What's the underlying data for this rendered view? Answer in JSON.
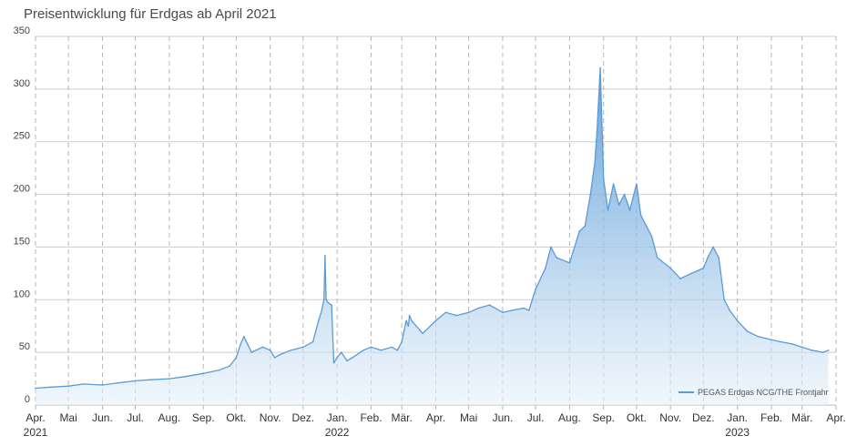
{
  "chart_data": {
    "type": "area",
    "title": "Preisentwicklung für Erdgas ab April 2021",
    "ylim": [
      0,
      350
    ],
    "yticks": [
      0,
      50,
      100,
      150,
      200,
      250,
      300,
      350
    ],
    "xlim": [
      "2021-04-01",
      "2023-04-01"
    ],
    "xticks": [
      {
        "date": "2021-04-01",
        "label": "Apr.",
        "year": "2021"
      },
      {
        "date": "2021-05-01",
        "label": "Mai"
      },
      {
        "date": "2021-06-01",
        "label": "Jun."
      },
      {
        "date": "2021-07-01",
        "label": "Jul."
      },
      {
        "date": "2021-08-01",
        "label": "Aug."
      },
      {
        "date": "2021-09-01",
        "label": "Sep."
      },
      {
        "date": "2021-10-01",
        "label": "Okt."
      },
      {
        "date": "2021-11-01",
        "label": "Nov."
      },
      {
        "date": "2021-12-01",
        "label": "Dez."
      },
      {
        "date": "2022-01-01",
        "label": "Jan.",
        "year": "2022"
      },
      {
        "date": "2022-02-01",
        "label": "Feb."
      },
      {
        "date": "2022-03-01",
        "label": "Mär."
      },
      {
        "date": "2022-04-01",
        "label": "Apr."
      },
      {
        "date": "2022-05-01",
        "label": "Mai"
      },
      {
        "date": "2022-06-01",
        "label": "Jun."
      },
      {
        "date": "2022-07-01",
        "label": "Jul."
      },
      {
        "date": "2022-08-01",
        "label": "Aug."
      },
      {
        "date": "2022-09-01",
        "label": "Sep."
      },
      {
        "date": "2022-10-01",
        "label": "Okt."
      },
      {
        "date": "2022-11-01",
        "label": "Nov."
      },
      {
        "date": "2022-12-01",
        "label": "Dez."
      },
      {
        "date": "2023-01-01",
        "label": "Jan.",
        "year": "2023"
      },
      {
        "date": "2023-02-01",
        "label": "Feb."
      },
      {
        "date": "2023-03-01",
        "label": "Mär."
      },
      {
        "date": "2023-04-01",
        "label": "Apr."
      }
    ],
    "grid": {
      "horizontal": "solid",
      "vertical": "dashed"
    },
    "legend_position": "bottom-right",
    "series": [
      {
        "name": "PEGAS Erdgas NCG/THE Frontjahr",
        "color": "#5b9bd5",
        "x": [
          "2021-04-01",
          "2021-04-15",
          "2021-05-01",
          "2021-05-15",
          "2021-06-01",
          "2021-06-15",
          "2021-07-01",
          "2021-07-15",
          "2021-08-01",
          "2021-08-15",
          "2021-09-01",
          "2021-09-15",
          "2021-09-25",
          "2021-10-01",
          "2021-10-05",
          "2021-10-08",
          "2021-10-15",
          "2021-10-25",
          "2021-11-01",
          "2021-11-05",
          "2021-11-10",
          "2021-11-20",
          "2021-12-01",
          "2021-12-10",
          "2021-12-15",
          "2021-12-18",
          "2021-12-20",
          "2021-12-21",
          "2021-12-22",
          "2021-12-24",
          "2021-12-27",
          "2021-12-29",
          "2022-01-01",
          "2022-01-05",
          "2022-01-10",
          "2022-01-15",
          "2022-01-25",
          "2022-02-01",
          "2022-02-10",
          "2022-02-20",
          "2022-02-25",
          "2022-03-01",
          "2022-03-05",
          "2022-03-07",
          "2022-03-08",
          "2022-03-10",
          "2022-03-20",
          "2022-04-01",
          "2022-04-10",
          "2022-04-20",
          "2022-05-01",
          "2022-05-10",
          "2022-05-20",
          "2022-06-01",
          "2022-06-10",
          "2022-06-20",
          "2022-06-25",
          "2022-07-01",
          "2022-07-10",
          "2022-07-15",
          "2022-07-20",
          "2022-08-01",
          "2022-08-10",
          "2022-08-15",
          "2022-08-20",
          "2022-08-24",
          "2022-08-26",
          "2022-08-29",
          "2022-09-01",
          "2022-09-05",
          "2022-09-10",
          "2022-09-15",
          "2022-09-20",
          "2022-09-25",
          "2022-10-01",
          "2022-10-05",
          "2022-10-10",
          "2022-10-15",
          "2022-10-20",
          "2022-11-01",
          "2022-11-10",
          "2022-11-20",
          "2022-12-01",
          "2022-12-05",
          "2022-12-10",
          "2022-12-15",
          "2022-12-20",
          "2022-12-25",
          "2023-01-01",
          "2023-01-10",
          "2023-01-20",
          "2023-02-01",
          "2023-02-10",
          "2023-02-20",
          "2023-03-01",
          "2023-03-10",
          "2023-03-20",
          "2023-03-25"
        ],
        "values": [
          16,
          17,
          18,
          20,
          19,
          21,
          23,
          24,
          25,
          27,
          30,
          33,
          37,
          45,
          58,
          65,
          50,
          55,
          52,
          45,
          48,
          52,
          55,
          60,
          80,
          90,
          100,
          142,
          100,
          97,
          95,
          40,
          45,
          50,
          42,
          45,
          52,
          55,
          52,
          55,
          52,
          60,
          80,
          75,
          85,
          80,
          68,
          80,
          88,
          85,
          88,
          92,
          95,
          88,
          90,
          92,
          90,
          110,
          130,
          150,
          140,
          135,
          165,
          170,
          200,
          230,
          260,
          320,
          215,
          185,
          210,
          190,
          200,
          185,
          210,
          180,
          170,
          160,
          140,
          130,
          120,
          125,
          130,
          140,
          150,
          140,
          100,
          90,
          80,
          70,
          65,
          62,
          60,
          58,
          55,
          52,
          50,
          52
        ]
      }
    ]
  }
}
